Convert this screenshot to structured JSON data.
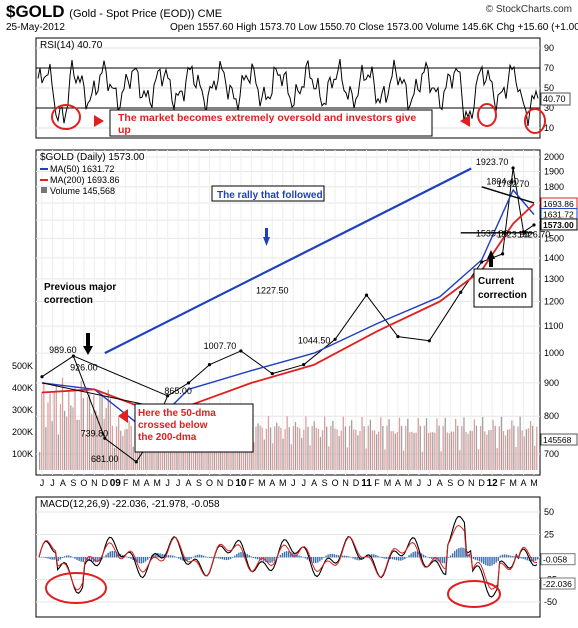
{
  "header": {
    "symbol": "$GOLD",
    "symbol_desc": "(Gold - Spot Price (EOD)) CME",
    "date": "25-May-2012",
    "ohlc": "Open 1557.60  High 1573.70  Low 1550.70  Close 1573.00  Volume 145.6K  Chg +15.60 (+1.00%) ▲",
    "credit": "© StockCharts.com"
  },
  "chart_data": [
    {
      "type": "line",
      "panel": "rsi",
      "legend": "RSI(14) 40.70",
      "y_ticks": [
        90,
        70,
        50,
        30,
        10
      ],
      "reference_lines": [
        70,
        30
      ],
      "ylim": [
        0,
        100
      ],
      "last_value_label": "40.70",
      "annotation": "The market becomes extremely oversold and investors give up"
    },
    {
      "type": "line",
      "panel": "price",
      "y_scale": "log",
      "ylim": [
        650,
        2050
      ],
      "y_ticks": [
        2000,
        1900,
        1800,
        1700,
        1600,
        1500,
        1400,
        1300,
        1200,
        1100,
        1000,
        900,
        800,
        700
      ],
      "legend": [
        {
          "name": "$GOLD (Daily) 1573.00",
          "color": "#000000"
        },
        {
          "name": "MA(50) 1631.72",
          "color": "#1f3fbf"
        },
        {
          "name": "MA(200) 1693.86",
          "color": "#e02020"
        },
        {
          "name": "Volume 145,568",
          "color": "#777777"
        }
      ],
      "x_ticks": [
        "J",
        "J",
        "A",
        "S",
        "O",
        "N",
        "D",
        "09",
        "F",
        "M",
        "A",
        "M",
        "J",
        "J",
        "A",
        "S",
        "O",
        "N",
        "D",
        "10",
        "F",
        "M",
        "A",
        "M",
        "J",
        "J",
        "A",
        "S",
        "O",
        "N",
        "D",
        "11",
        "F",
        "M",
        "A",
        "M",
        "J",
        "J",
        "A",
        "S",
        "O",
        "N",
        "D",
        "12",
        "F",
        "M",
        "A",
        "M"
      ],
      "series": [
        {
          "name": "$GOLD",
          "x": [
            0,
            3,
            6,
            9,
            10,
            12,
            14,
            16,
            19,
            22,
            25,
            28,
            31,
            34,
            37,
            40,
            42,
            44,
            45,
            46,
            47
          ],
          "y": [
            920,
            989.6,
            740,
            681,
            720,
            860,
            900,
            960,
            1007.7,
            930,
            960,
            1050,
            1227.5,
            1060,
            1044.5,
            1240,
            1380,
            1420,
            1923.7,
            1535,
            1573
          ]
        },
        {
          "name": "MA(50)",
          "x": [
            0,
            5,
            10,
            14,
            20,
            26,
            32,
            38,
            42,
            45,
            47
          ],
          "y": [
            900,
            880,
            760,
            880,
            940,
            1000,
            1110,
            1220,
            1390,
            1780,
            1631.72
          ]
        },
        {
          "name": "MA(200)",
          "x": [
            0,
            5,
            10,
            14,
            20,
            26,
            32,
            38,
            42,
            45,
            47
          ],
          "y": [
            870,
            880,
            820,
            830,
            900,
            960,
            1080,
            1200,
            1340,
            1580,
            1693.86
          ]
        }
      ],
      "price_labels": [
        "989.60",
        "926.00",
        "739.80",
        "681.00",
        "865.00",
        "1007.70",
        "1227.50",
        "1044.50",
        "1923.70",
        "1804.40",
        "1792.70",
        "1535.00",
        "1523.90",
        "1526.70"
      ],
      "volume_ticks": [
        "500K",
        "400K",
        "300K",
        "200K",
        "100K"
      ],
      "right_labels": [
        "1693.86",
        "1631.72",
        "1573.00",
        "145568"
      ],
      "annotations": [
        "The rally that followed",
        "Previous major correction",
        "Here the 50-dma crossed below the 200-dma",
        "Current correction"
      ]
    },
    {
      "type": "line",
      "panel": "macd",
      "legend": "MACD(12,26,9) -22.036, -21.978, -0.058",
      "y_ticks": [
        50,
        25,
        0,
        -25,
        -50
      ],
      "right_labels": [
        "-0.058",
        "-22.036"
      ]
    }
  ]
}
